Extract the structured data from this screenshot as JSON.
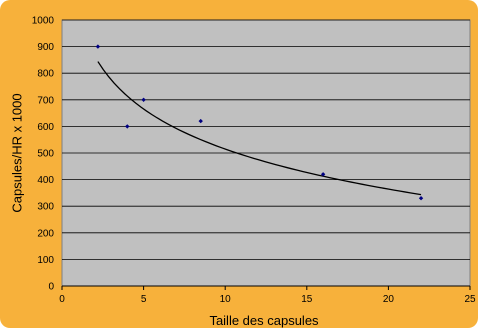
{
  "chart_data": {
    "type": "scatter",
    "title": "",
    "xlabel": "Taille des capsules",
    "ylabel": "Capsules/HR x 1000",
    "xlim": [
      0,
      25
    ],
    "ylim": [
      0,
      1000
    ],
    "x_ticks": [
      "0",
      "5",
      "10",
      "15",
      "20",
      "25"
    ],
    "y_ticks": [
      "0",
      "100",
      "200",
      "300",
      "400",
      "500",
      "600",
      "700",
      "800",
      "900",
      "1000"
    ],
    "grid": "horizontal",
    "legend": "none",
    "points": [
      {
        "x": 2.2,
        "y": 900
      },
      {
        "x": 4,
        "y": 600
      },
      {
        "x": 5,
        "y": 700
      },
      {
        "x": 8.5,
        "y": 620
      },
      {
        "x": 16,
        "y": 420
      },
      {
        "x": 22,
        "y": 330
      }
    ],
    "trendline": {
      "type": "logarithmic",
      "x_start": 2.2,
      "x_end": 22,
      "a": -217.2,
      "b": 1015
    },
    "colors": {
      "background": "#f7b13b",
      "plot_area": "#c0c0c0",
      "gridlines": "#000000",
      "points": "#000080",
      "trendline": "#000000"
    }
  }
}
